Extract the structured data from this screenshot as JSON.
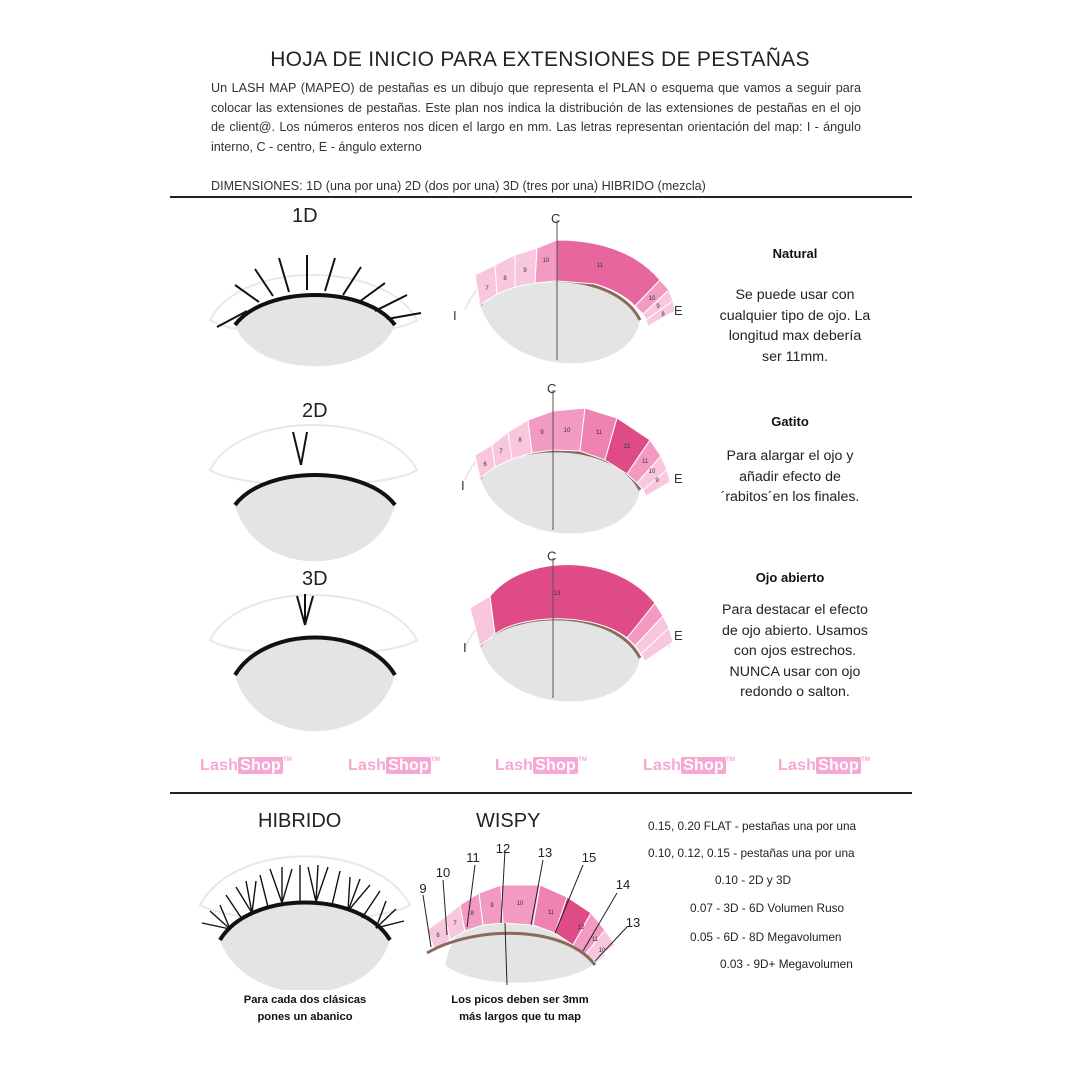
{
  "header": {
    "title": "HOJA DE INICIO PARA EXTENSIONES DE PESTAÑAS",
    "intro": "Un LASH MAP (MAPEO) de pestañas es un dibujo que representa el PLAN o esquema que vamos a seguir para colocar las extensiones de pestañas. Este plan nos indica la distribución de las extensiones de pestañas en el ojo de client@. Los números enteros nos dicen el largo en mm. Las letras representan orientación del map: I - ángulo interno, C - centro, E - ángulo externo",
    "dimensions": "DIMENSIONES: 1D (una por una) 2D (dos por una) 3D (tres por una) HIBRIDO (mezcla)"
  },
  "rows": [
    {
      "dimension": "1D",
      "style_title": "Natural",
      "style_desc": [
        "Se puede usar con",
        "cualquier tipo de ojo. La",
        "longitud max debería",
        "ser 11mm."
      ],
      "map_labels": {
        "center": "C",
        "inner": "I",
        "outer": "E"
      },
      "segments": [
        "7",
        "8",
        "9",
        "10",
        "11",
        "10",
        "9",
        "8"
      ]
    },
    {
      "dimension": "2D",
      "style_title": "Gatito",
      "style_desc": [
        "Para alargar el ojo y",
        "añadir efecto de",
        "´rabitos´en los finales."
      ],
      "map_labels": {
        "center": "C",
        "inner": "I",
        "outer": "E"
      },
      "segments": [
        "6",
        "7",
        "8",
        "9",
        "10",
        "11",
        "12",
        "11",
        "10",
        "9"
      ]
    },
    {
      "dimension": "3D",
      "style_title": "Ojo abierto",
      "style_desc": [
        "Para destacar el efecto",
        "de ojo abierto. Usamos",
        "con ojos estrechos.",
        "NUNCA usar con ojo",
        "redondo o salton."
      ],
      "map_labels": {
        "center": "C",
        "inner": "I",
        "outer": "E"
      },
      "segments": [
        "13"
      ]
    }
  ],
  "logos": [
    {
      "a": "Lash",
      "b": "Shop",
      "tm": "TM"
    },
    {
      "a": "Lash",
      "b": "Shop",
      "tm": "TM"
    },
    {
      "a": "Lash",
      "b": "Shop",
      "tm": "TM"
    },
    {
      "a": "Lash",
      "b": "Shop",
      "tm": "TM"
    },
    {
      "a": "Lash",
      "b": "Shop",
      "tm": "TM"
    }
  ],
  "bottom": {
    "hibrido_title": "HIBRIDO",
    "wispy_title": "WISPY",
    "wispy_peaks": [
      "9",
      "10",
      "11",
      "12",
      "13",
      "15",
      "14",
      "13"
    ],
    "wispy_segments": [
      "6",
      "7",
      "8",
      "9",
      "10",
      "11",
      "12",
      "11",
      "10"
    ],
    "hibrido_note": [
      "Para cada dos clásicas",
      "pones un abanico"
    ],
    "wispy_note": [
      "Los picos deben ser 3mm",
      "más largos que tu map"
    ],
    "specs": [
      "0.15, 0.20 FLAT - pestañas una por una",
      "0.10, 0.12, 0.15 - pestañas una por una",
      "0.10 - 2D y 3D",
      "0.07 - 3D - 6D Volumen Ruso",
      "0.05 - 6D - 8D Megavolumen",
      "0.03 - 9D+  Megavolumen"
    ],
    "measure_label": "3mm"
  },
  "colors": {
    "pink_light": "#f9c7dd",
    "pink_mid": "#f29ac1",
    "pink_dark": "#df4b86",
    "pink_logo": "#f6a7d2",
    "gray_fill": "#e4e4e4"
  }
}
